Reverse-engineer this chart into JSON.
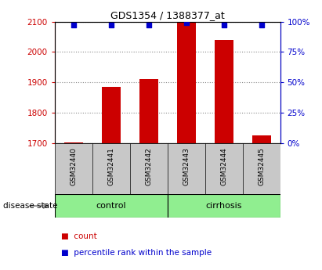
{
  "title": "GDS1354 / 1388377_at",
  "samples": [
    "GSM32440",
    "GSM32441",
    "GSM32442",
    "GSM32443",
    "GSM32444",
    "GSM32445"
  ],
  "count_values": [
    1702,
    1885,
    1910,
    2100,
    2040,
    1725
  ],
  "percentile_values": [
    97,
    97,
    97,
    99,
    97,
    97
  ],
  "ylim_left": [
    1700,
    2100
  ],
  "ylim_right": [
    0,
    100
  ],
  "yticks_left": [
    1700,
    1800,
    1900,
    2000,
    2100
  ],
  "yticks_right": [
    0,
    25,
    50,
    75,
    100
  ],
  "group_labels": [
    "control",
    "cirrhosis"
  ],
  "group_colors": [
    "#90EE90",
    "#90EE90"
  ],
  "bar_color": "#CC0000",
  "dot_color": "#0000CC",
  "left_axis_color": "#CC0000",
  "right_axis_color": "#0000CC",
  "background_color": "#ffffff",
  "plot_bg_color": "#ffffff",
  "label_bg_color": "#c8c8c8",
  "grid_color": "#888888",
  "disease_state_label": "disease state",
  "legend_count_label": "count",
  "legend_pct_label": "percentile rank within the sample"
}
